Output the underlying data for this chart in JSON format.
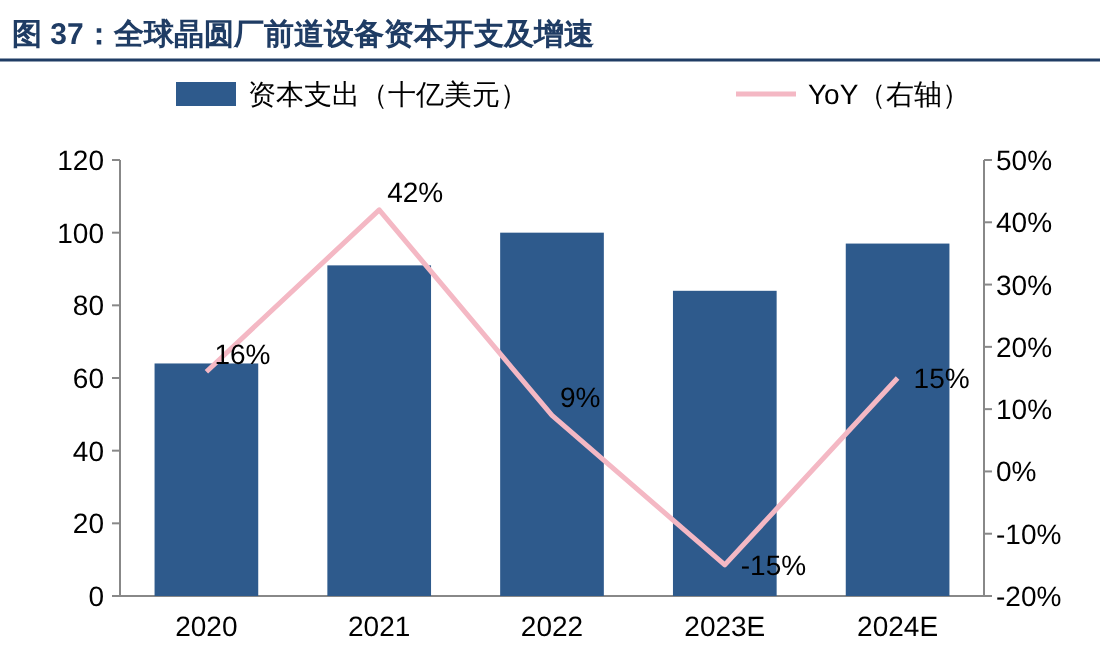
{
  "chart_data": {
    "type": "bar",
    "title": "图 37：全球晶圆厂前道设备资本开支及增速",
    "categories": [
      "2020",
      "2021",
      "2022",
      "2023E",
      "2024E"
    ],
    "series": [
      {
        "name": "资本支出（十亿美元）",
        "color": "#2e5a8c",
        "values": [
          64,
          91,
          100,
          84,
          97
        ]
      },
      {
        "name": "YoY（右轴）",
        "type": "line",
        "axis": "y2",
        "color": "#f4b8c4",
        "values": [
          16,
          42,
          9,
          -15,
          15
        ],
        "value_labels": [
          "16%",
          "42%",
          "9%",
          "-15%",
          "15%"
        ]
      }
    ],
    "ylim": [
      0,
      120
    ],
    "yticks": [
      0,
      20,
      40,
      60,
      80,
      100,
      120
    ],
    "y2lim": [
      -20,
      50
    ],
    "y2ticks": [
      {
        "value": -20,
        "label": "-20%"
      },
      {
        "value": -10,
        "label": "-10%"
      },
      {
        "value": 0,
        "label": "0%"
      },
      {
        "value": 10,
        "label": "10%"
      },
      {
        "value": 20,
        "label": "20%"
      },
      {
        "value": 30,
        "label": "30%"
      },
      {
        "value": 40,
        "label": "40%"
      },
      {
        "value": 50,
        "label": "50%"
      }
    ],
    "legend": "top"
  }
}
